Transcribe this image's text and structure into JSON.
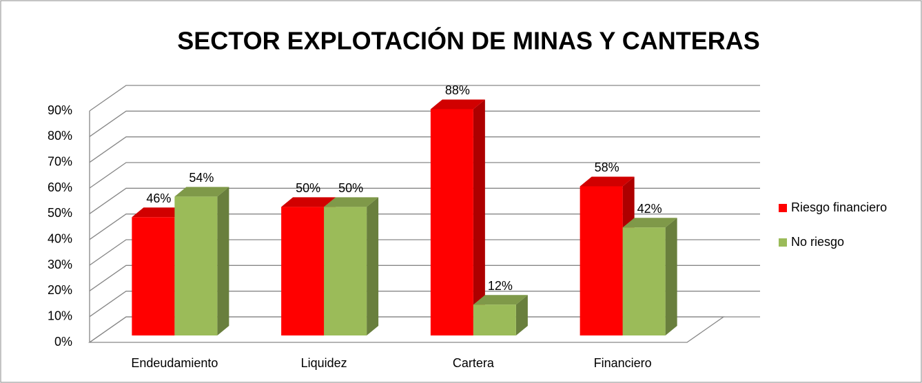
{
  "chart_data": {
    "type": "bar3d",
    "title": "SECTOR EXPLOTACIÓN DE MINAS Y CANTERAS",
    "categories": [
      "Endeudamiento",
      "Liquidez",
      "Cartera",
      "Financiero"
    ],
    "series": [
      {
        "name": "Riesgo financiero",
        "color": "#ff0000",
        "values": [
          46,
          50,
          88,
          58
        ],
        "value_labels": [
          "46%",
          "50%",
          "88%",
          "58%"
        ]
      },
      {
        "name": "No riesgo",
        "color": "#9bbb59",
        "values": [
          54,
          50,
          12,
          42
        ],
        "value_labels": [
          "54%",
          "50%",
          "12%",
          "42%"
        ]
      }
    ],
    "ylim": [
      0,
      90
    ],
    "yticks": [
      {
        "value": 0,
        "label": "0%"
      },
      {
        "value": 10,
        "label": "10%"
      },
      {
        "value": 20,
        "label": "20%"
      },
      {
        "value": 30,
        "label": "30%"
      },
      {
        "value": 40,
        "label": "40%"
      },
      {
        "value": 50,
        "label": "50%"
      },
      {
        "value": 60,
        "label": "60%"
      },
      {
        "value": 70,
        "label": "70%"
      },
      {
        "value": 80,
        "label": "80%"
      },
      {
        "value": 90,
        "label": "90%"
      }
    ],
    "grid": true,
    "legend": "right"
  }
}
